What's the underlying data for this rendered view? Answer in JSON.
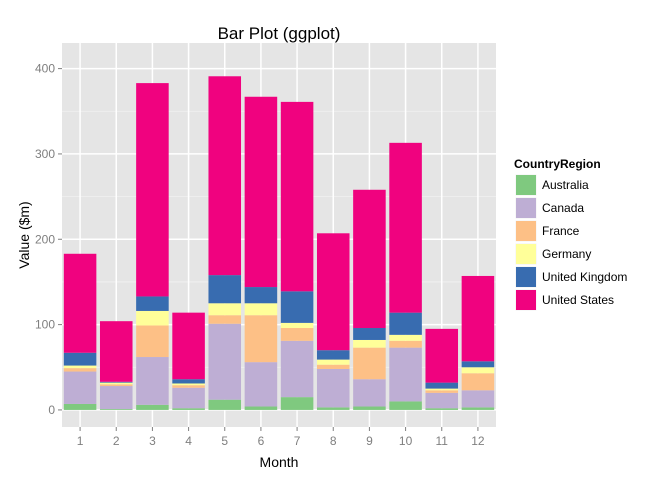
{
  "chart_data": {
    "type": "bar",
    "stacked": true,
    "title": "Bar Plot (ggplot)",
    "xlabel": "Month",
    "ylabel": "Value ($m)",
    "categories": [
      "1",
      "2",
      "3",
      "4",
      "5",
      "6",
      "7",
      "8",
      "9",
      "10",
      "11",
      "12"
    ],
    "ylim": [
      -20,
      430
    ],
    "yticks": [
      0,
      100,
      200,
      300,
      400
    ],
    "grid": true,
    "legend": {
      "title": "CountryRegion",
      "position": "right"
    },
    "series": [
      {
        "name": "Australia",
        "color": "#7fc97f",
        "values": [
          7,
          1,
          6,
          2,
          12,
          4,
          15,
          3,
          4,
          10,
          2,
          3
        ]
      },
      {
        "name": "Canada",
        "color": "#beaed4",
        "values": [
          38,
          27,
          56,
          24,
          89,
          52,
          66,
          45,
          32,
          63,
          18,
          20
        ]
      },
      {
        "name": "France",
        "color": "#fdc086",
        "values": [
          4,
          2,
          37,
          3,
          10,
          55,
          15,
          5,
          37,
          8,
          3,
          20
        ]
      },
      {
        "name": "Germany",
        "color": "#ffff99",
        "values": [
          3,
          2,
          17,
          2,
          14,
          14,
          6,
          6,
          9,
          7,
          2,
          7
        ]
      },
      {
        "name": "United Kingdom",
        "color": "#386cb0",
        "values": [
          15,
          1,
          17,
          5,
          33,
          19,
          37,
          11,
          14,
          26,
          7,
          7
        ]
      },
      {
        "name": "United States",
        "color": "#f0027f",
        "values": [
          116,
          71,
          250,
          78,
          233,
          223,
          222,
          137,
          162,
          199,
          63,
          100
        ]
      }
    ]
  }
}
